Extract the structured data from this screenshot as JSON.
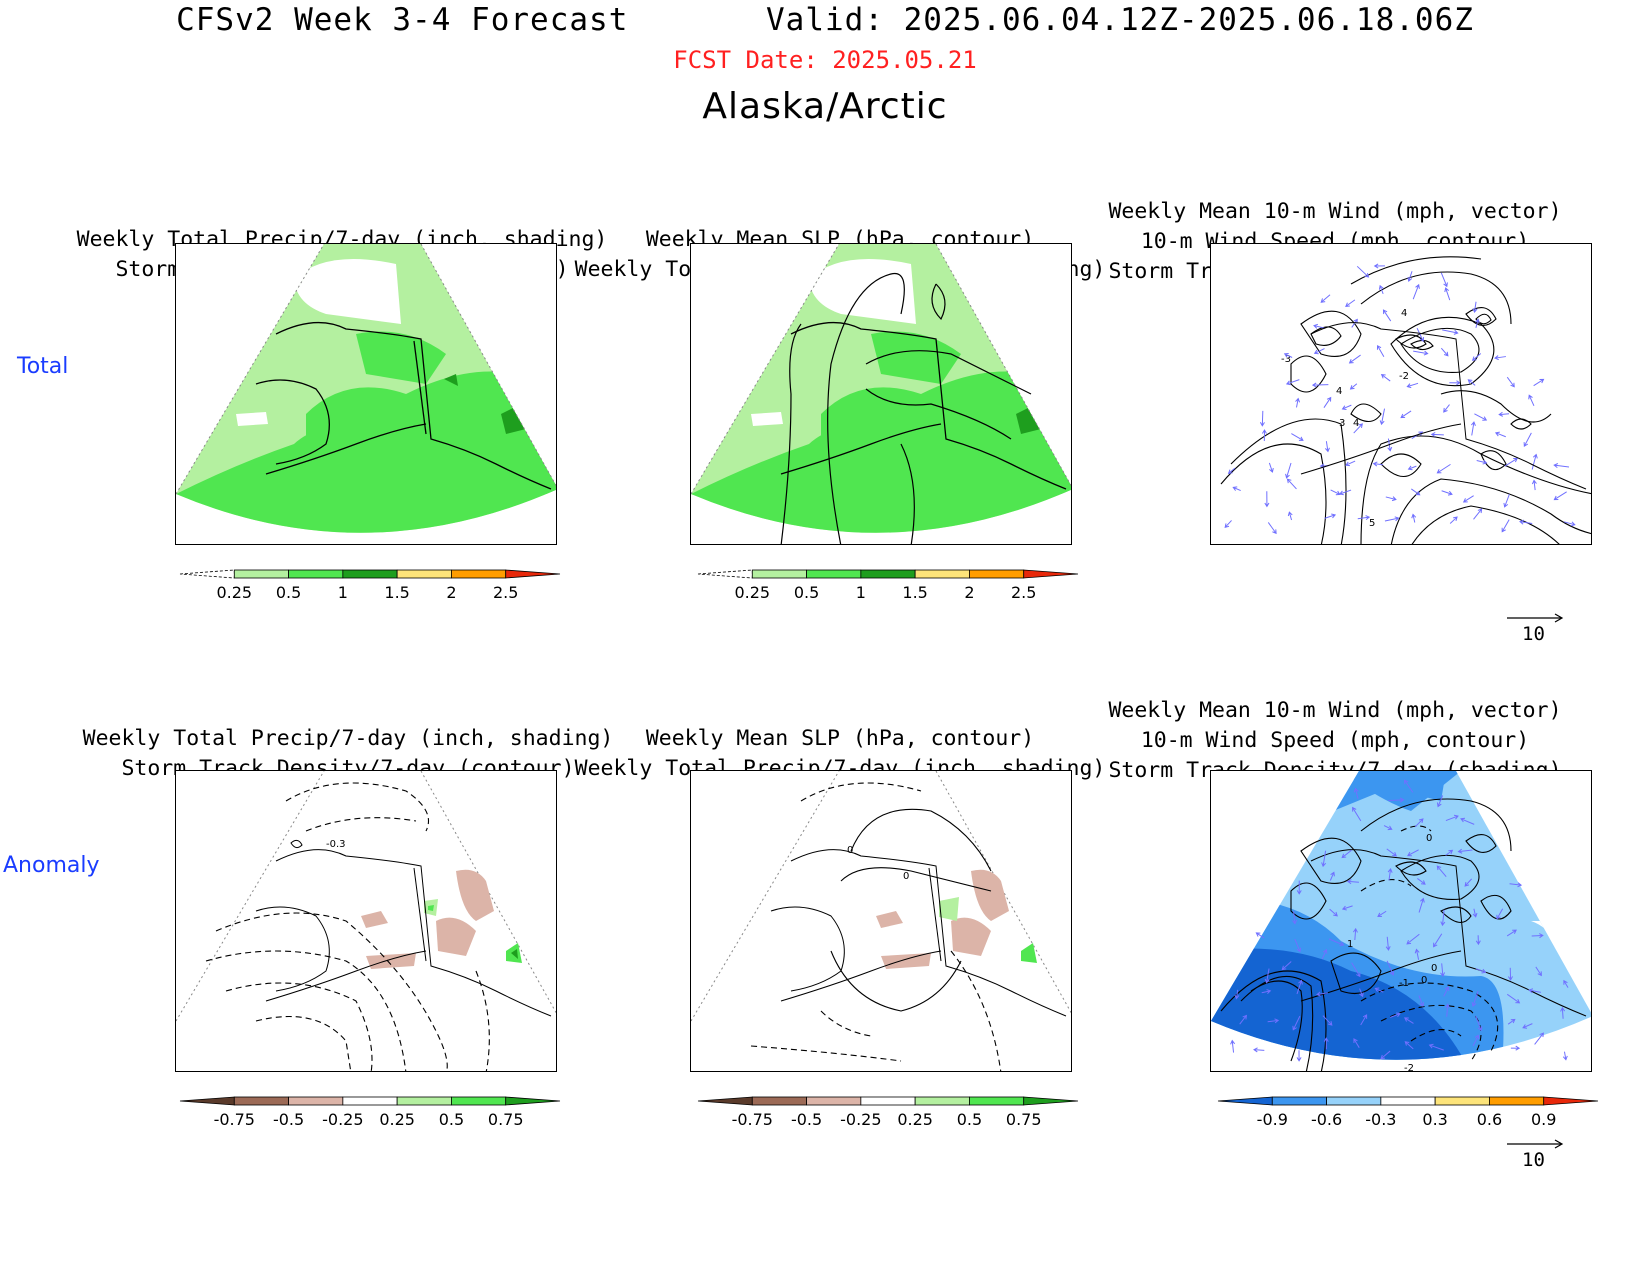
{
  "header": {
    "title": "CFSv2 Week 3-4 Forecast       Valid: 2025.06.04.12Z-2025.06.18.06Z",
    "fcst_date": "FCST Date: 2025.05.21",
    "region": "Alaska/Arctic"
  },
  "rows": [
    {
      "label": "Total"
    },
    {
      "label": "Anomaly"
    }
  ],
  "panel_titles": {
    "precip_storm": [
      "Weekly Total Precip/7-day (inch, shading)",
      "Storm Track Density/7-day (contour)"
    ],
    "slp_precip": [
      "Weekly Mean SLP (hPa, contour)",
      "Weekly Total Precip/7-day (inch, shading)"
    ],
    "wind_storm": [
      "Weekly Mean 10-m Wind (mph, vector)",
      "10-m Wind Speed (mph, contour)",
      "Storm Track Density/7-day (shading)"
    ]
  },
  "colorbars": {
    "precip_total": {
      "labels": [
        "0.25",
        "0.5",
        "1",
        "1.5",
        "2",
        "2.5"
      ],
      "colors": [
        "#ffffff",
        "#b4f0a0",
        "#50e650",
        "#1e9e1e",
        "#fde47a",
        "#ff9d00",
        "#e8280a"
      ]
    },
    "precip_anom": {
      "labels": [
        "-0.75",
        "-0.5",
        "-0.25",
        "0.25",
        "0.5",
        "0.75"
      ],
      "colors": [
        "#5a3a2a",
        "#9c6a56",
        "#dcb4a8",
        "#ffffff",
        "#b4f0a0",
        "#50e650",
        "#1e9e1e"
      ]
    },
    "storm_anom": {
      "labels": [
        "-0.9",
        "-0.6",
        "-0.3",
        "0.3",
        "0.6",
        "0.9"
      ],
      "colors": [
        "#1464d2",
        "#3c96f0",
        "#96d2fa",
        "#ffffff",
        "#fde47a",
        "#ff9d00",
        "#e8280a"
      ]
    }
  },
  "contour_labels": {
    "total_storm": [
      "-3",
      "4",
      "-2",
      "3",
      "4",
      "5"
    ],
    "anom_precip": [
      "-0.3"
    ],
    "anom_slp": [
      "0",
      "0"
    ],
    "anom_storm": [
      "0",
      "1",
      "0",
      "-1",
      "0",
      "-2"
    ]
  },
  "reference_vector": {
    "value": "10"
  },
  "colors": {
    "fcst_date": "#ff2020",
    "row_label": "#1a3cff",
    "vector": "#7070ff"
  }
}
